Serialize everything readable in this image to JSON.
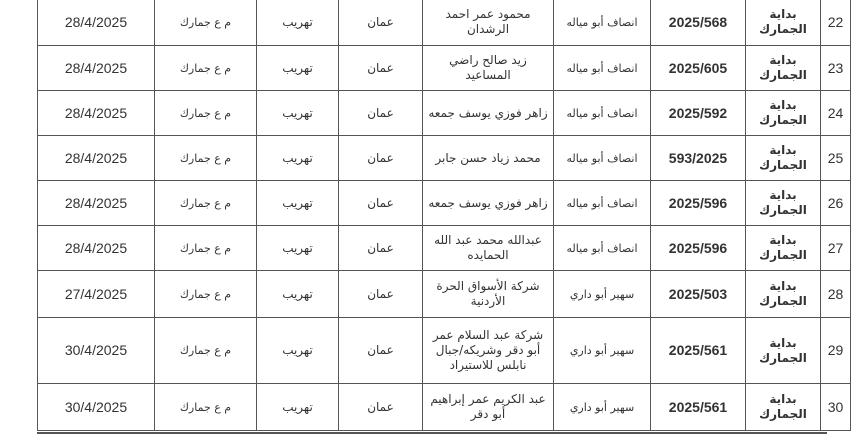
{
  "rows": [
    {
      "no": "22",
      "court": "بداية الجمارك",
      "case": "2025/568",
      "judge": "انصاف أبو مياله",
      "party": "محمود عمر احمد الرشدان",
      "city": "عمان",
      "type": "تهريب",
      "plaintiff": "م ع جمارك",
      "date": "28/4/2025"
    },
    {
      "no": "23",
      "court": "بداية الجمارك",
      "case": "2025/605",
      "judge": "انصاف أبو مياله",
      "party": "زيد صالح راضي المساعيد",
      "city": "عمان",
      "type": "تهريب",
      "plaintiff": "م ع جمارك",
      "date": "28/4/2025"
    },
    {
      "no": "24",
      "court": "بداية الجمارك",
      "case": "2025/592",
      "judge": "انصاف أبو مياله",
      "party": "زاهر فوزي يوسف جمعه",
      "city": "عمان",
      "type": "تهريب",
      "plaintiff": "م ع جمارك",
      "date": "28/4/2025"
    },
    {
      "no": "25",
      "court": "بداية الجمارك",
      "case": "593/2025",
      "judge": "انصاف أبو مياله",
      "party": "محمد زياد حسن جابر",
      "city": "عمان",
      "type": "تهريب",
      "plaintiff": "م ع جمارك",
      "date": "28/4/2025"
    },
    {
      "no": "26",
      "court": "بداية الجمارك",
      "case": "2025/596",
      "judge": "انصاف أبو مياله",
      "party": "زاهر فوزي يوسف جمعه",
      "city": "عمان",
      "type": "تهريب",
      "plaintiff": "م ع جمارك",
      "date": "28/4/2025"
    },
    {
      "no": "27",
      "court": "بداية الجمارك",
      "case": "2025/596",
      "judge": "انصاف أبو مياله",
      "party": "عبدالله محمد عبد الله الحمايده",
      "city": "عمان",
      "type": "تهريب",
      "plaintiff": "م ع جمارك",
      "date": "28/4/2025"
    },
    {
      "no": "28",
      "court": "بداية الجمارك",
      "case": "2025/503",
      "judge": "سهير أبو داري",
      "party": "شركة الأسواق الحرة الأردنية",
      "city": "عمان",
      "type": "تهريب",
      "plaintiff": "م ع جمارك",
      "date": "27/4/2025"
    },
    {
      "no": "29",
      "court": "بداية الجمارك",
      "case": "2025/561",
      "judge": "سهير أبو داري",
      "party": "شركة عبد السلام عمر أبو دقر وشريكه/جبال نابلس للاستيراد",
      "city": "عمان",
      "type": "تهريب",
      "plaintiff": "م ع جمارك",
      "date": "30/4/2025"
    },
    {
      "no": "30",
      "court": "بداية الجمارك",
      "case": "2025/561",
      "judge": "سهير أبو داري",
      "party": "عبد الكريم عمر إبراهيم أبو دقر",
      "city": "عمان",
      "type": "تهريب",
      "plaintiff": "م ع جمارك",
      "date": "30/4/2025"
    }
  ]
}
